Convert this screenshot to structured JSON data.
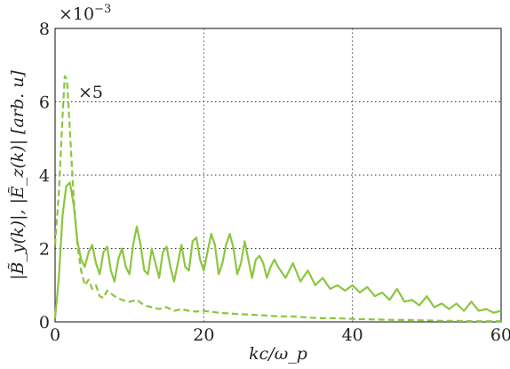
{
  "chart_data": {
    "type": "line",
    "title": "",
    "xlabel": "kc/ω_p",
    "ylabel": "|B̃_y(k)|, |Ẽ_z(k)| [arb. u]",
    "xlim": [
      0,
      60
    ],
    "ylim": [
      0,
      8
    ],
    "y_scale_label": "×10^{-3}",
    "x_ticks": [
      0,
      20,
      40,
      60
    ],
    "y_ticks": [
      0,
      2,
      4,
      6,
      8
    ],
    "grid": true,
    "color": "#8cc63f",
    "annotation": "×5",
    "series": [
      {
        "style": "solid",
        "x": [
          0,
          0.5,
          1,
          1.5,
          2,
          2.5,
          3,
          3.5,
          4,
          4.5,
          5,
          5.5,
          6,
          6.5,
          7,
          7.5,
          8,
          8.5,
          9,
          9.5,
          10,
          10.5,
          11,
          11.5,
          12,
          12.5,
          13,
          13.5,
          14,
          14.5,
          15,
          15.5,
          16,
          16.5,
          17,
          17.5,
          18,
          18.5,
          19,
          19.5,
          20,
          20.5,
          21,
          21.5,
          22,
          22.5,
          23,
          23.5,
          24,
          24.5,
          25,
          25.5,
          26,
          26.5,
          27,
          27.5,
          28,
          28.5,
          29,
          29.5,
          30,
          31,
          32,
          33,
          34,
          35,
          36,
          37,
          38,
          39,
          40,
          41,
          42,
          43,
          44,
          45,
          46,
          47,
          48,
          49,
          50,
          51,
          52,
          53,
          54,
          55,
          56,
          57,
          58,
          59,
          60
        ],
        "y": [
          0.1,
          1.2,
          2.9,
          3.7,
          3.8,
          3.2,
          2.2,
          1.7,
          1.5,
          1.9,
          2.1,
          1.6,
          1.3,
          1.9,
          2.05,
          1.4,
          1.1,
          1.7,
          2.0,
          1.5,
          1.3,
          2.1,
          2.6,
          2.1,
          1.4,
          1.3,
          2.0,
          1.6,
          1.2,
          1.9,
          2.05,
          1.5,
          1.1,
          1.6,
          2.1,
          1.5,
          1.4,
          2.2,
          2.3,
          1.7,
          1.4,
          1.9,
          2.4,
          2.1,
          1.3,
          1.6,
          2.1,
          2.4,
          2.0,
          1.3,
          1.6,
          2.2,
          1.7,
          1.2,
          1.7,
          1.8,
          1.6,
          1.2,
          1.5,
          1.7,
          1.5,
          1.2,
          1.6,
          1.1,
          1.4,
          1.0,
          1.2,
          0.9,
          1.0,
          0.85,
          1.0,
          0.8,
          0.95,
          0.7,
          0.8,
          0.6,
          0.9,
          0.55,
          0.6,
          0.45,
          0.7,
          0.4,
          0.5,
          0.35,
          0.5,
          0.3,
          0.55,
          0.3,
          0.35,
          0.25,
          0.3
        ]
      },
      {
        "style": "dashed",
        "x": [
          0,
          0.5,
          1,
          1.3,
          1.6,
          2,
          2.5,
          3,
          3.5,
          4,
          4.5,
          5,
          5.5,
          6,
          6.5,
          7,
          8,
          9,
          10,
          11,
          12,
          13,
          14,
          15,
          16,
          17,
          18,
          19,
          20,
          22,
          24,
          26,
          28,
          30,
          32,
          34,
          36,
          38,
          40,
          42,
          44,
          46,
          48,
          50,
          52,
          54,
          56,
          58,
          60
        ],
        "y": [
          2.1,
          3.5,
          5.6,
          6.7,
          6.6,
          5.2,
          3.4,
          2.1,
          1.4,
          1.0,
          1.15,
          0.9,
          1.0,
          0.7,
          0.65,
          0.85,
          0.7,
          0.6,
          0.55,
          0.6,
          0.45,
          0.4,
          0.35,
          0.4,
          0.3,
          0.35,
          0.3,
          0.28,
          0.3,
          0.25,
          0.22,
          0.2,
          0.18,
          0.15,
          0.15,
          0.12,
          0.1,
          0.1,
          0.08,
          0.07,
          0.06,
          0.05,
          0.05,
          0.04,
          0.03,
          0.03,
          0.02,
          0.02,
          0.02
        ]
      }
    ]
  }
}
